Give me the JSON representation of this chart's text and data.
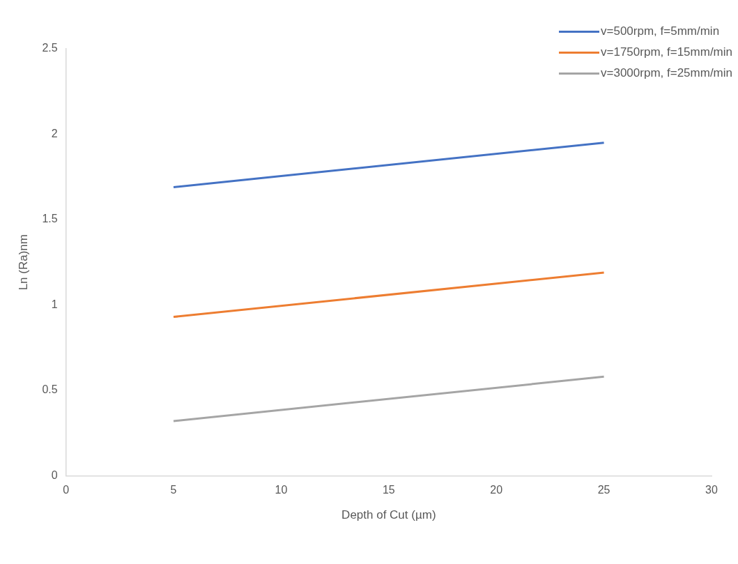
{
  "chart_data": {
    "type": "line",
    "xlabel": "Depth of Cut (µm)",
    "ylabel": "Ln (Ra)nm",
    "x": [
      5,
      25
    ],
    "series": [
      {
        "name": "v=500rpm, f=5mm/min",
        "color": "#4472c4",
        "values": [
          1.69,
          1.95
        ]
      },
      {
        "name": "v=1750rpm, f=15mm/min",
        "color": "#ed7d31",
        "values": [
          0.93,
          1.19
        ]
      },
      {
        "name": "v=3000rpm, f=25mm/min",
        "color": "#a5a5a5",
        "values": [
          0.32,
          0.58
        ]
      }
    ],
    "xlim": [
      0,
      30
    ],
    "xticks": [
      0,
      5,
      10,
      15,
      20,
      25,
      30
    ],
    "ylim": [
      0,
      2.5
    ],
    "yticks": [
      0,
      0.5,
      1,
      1.5,
      2,
      2.5
    ],
    "grid": false,
    "legend": "top right",
    "marker": "none",
    "line_style": "solid"
  }
}
